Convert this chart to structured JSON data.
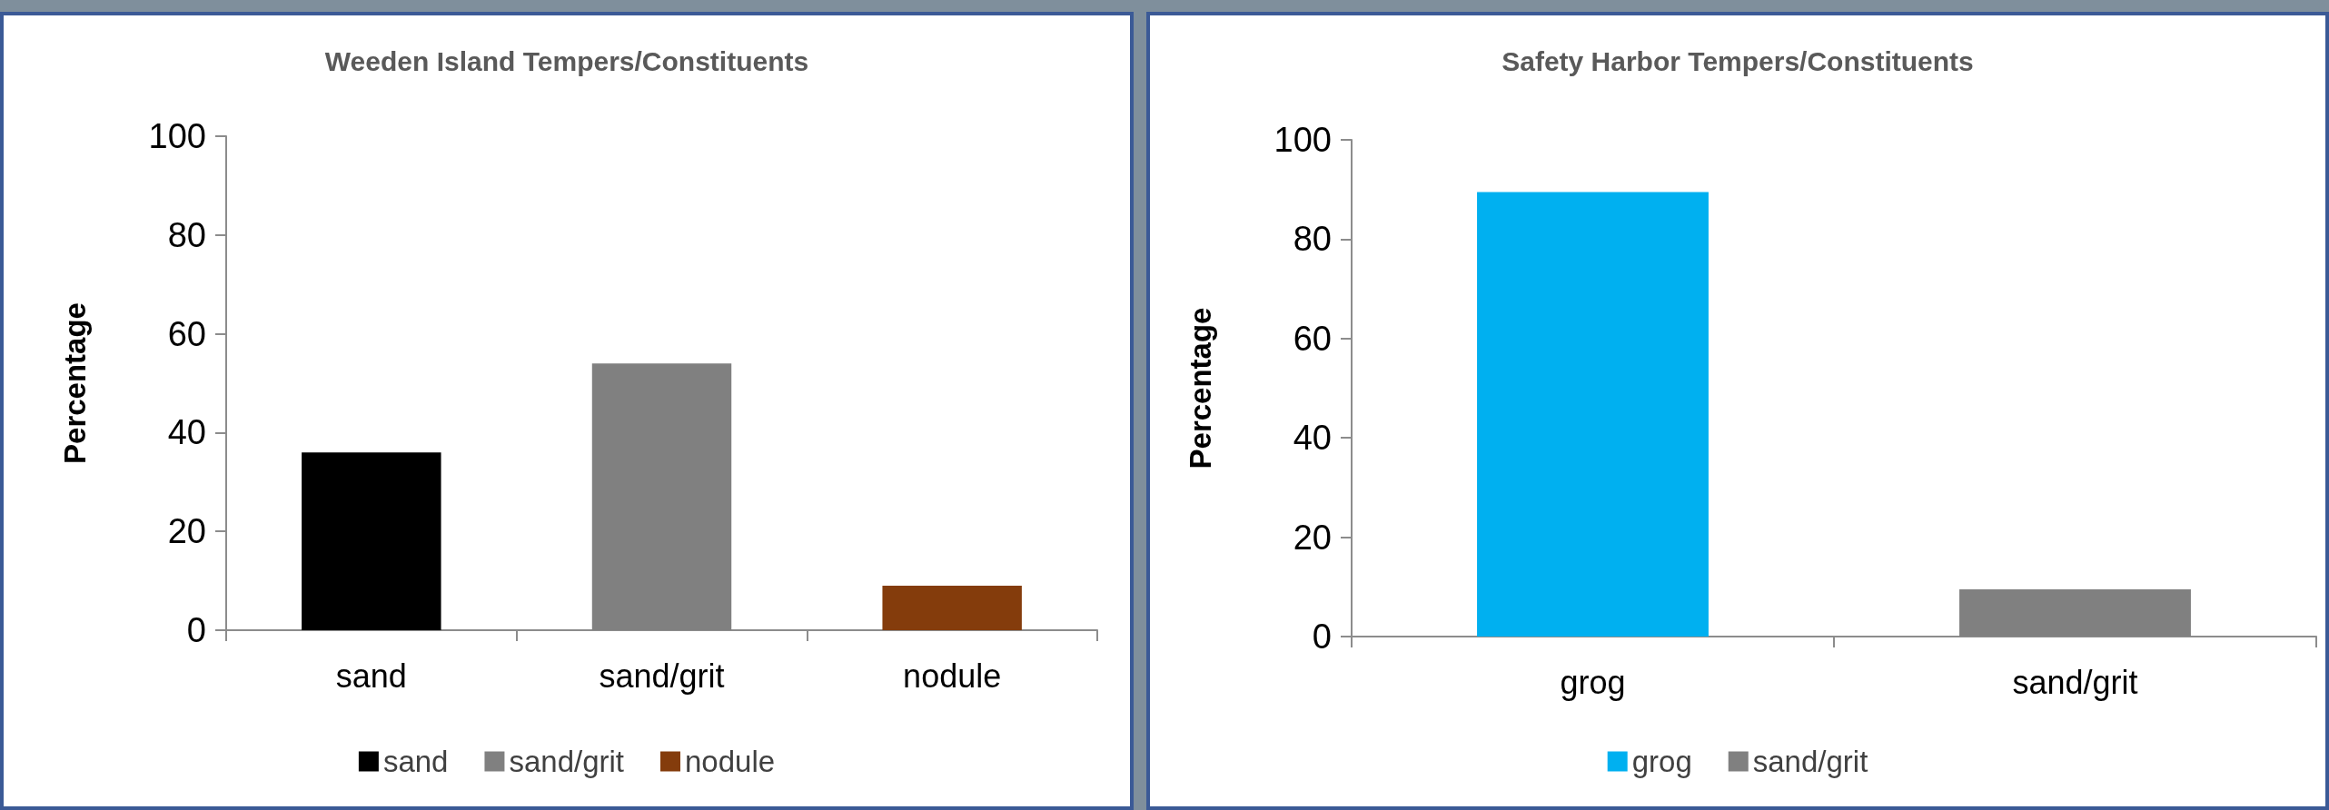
{
  "chart_data": [
    {
      "type": "bar",
      "title": "Weeden Island Tempers/Constituents",
      "ylabel": "Percentage",
      "categories": [
        "sand",
        "sand/grit",
        "nodule"
      ],
      "series": [
        {
          "name": "sand",
          "color": "#000000",
          "values": [
            36,
            null,
            null
          ]
        },
        {
          "name": "sand/grit",
          "color": "#808080",
          "values": [
            null,
            54,
            null
          ]
        },
        {
          "name": "nodule",
          "color": "#843c0c",
          "values": [
            null,
            null,
            9
          ]
        }
      ],
      "ylim": [
        0,
        100
      ],
      "yticks": [
        0,
        20,
        40,
        60,
        80,
        100
      ],
      "grid": false,
      "legend": "bottom"
    },
    {
      "type": "bar",
      "title": "Safety Harbor Tempers/Constituents",
      "ylabel": "Percentage",
      "categories": [
        "grog",
        "sand/grit"
      ],
      "series": [
        {
          "name": "grog",
          "color": "#00b0f0",
          "values": [
            89.5,
            null
          ]
        },
        {
          "name": "sand/grit",
          "color": "#808080",
          "values": [
            null,
            9.5
          ]
        }
      ],
      "ylim": [
        0,
        100
      ],
      "yticks": [
        0,
        20,
        40,
        60,
        80,
        100
      ],
      "grid": false,
      "legend": "bottom"
    }
  ]
}
